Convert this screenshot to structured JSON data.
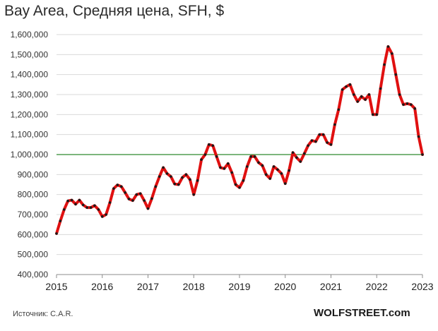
{
  "title": "Bay Area, Средняя цена, SFH, $",
  "source": "Источник: C.A.R.",
  "brand": "WOLFSTREET.com",
  "chart_data": {
    "type": "line",
    "title": "Bay Area, Средняя цена, SFH, $",
    "xlabel": "",
    "ylabel": "",
    "xlim": [
      2015,
      2023
    ],
    "ylim": [
      400000,
      1600000
    ],
    "grid": "horizontal",
    "y_ticks": [
      "400,000",
      "500,000",
      "600,000",
      "700,000",
      "800,000",
      "900,000",
      "1,000,000",
      "1,100,000",
      "1,200,000",
      "1,300,000",
      "1,400,000",
      "1,500,000",
      "1,600,000"
    ],
    "x_ticks": [
      "2015",
      "2016",
      "2017",
      "2018",
      "2019",
      "2020",
      "2021",
      "2022",
      "2023"
    ],
    "reference_line": {
      "value": 1000000,
      "color": "#2e8b2e"
    },
    "series": [
      {
        "color": "#e01010",
        "marker_color": "#1a1a1a",
        "x": [
          2015.0,
          2015.083,
          2015.167,
          2015.25,
          2015.333,
          2015.417,
          2015.5,
          2015.583,
          2015.667,
          2015.75,
          2015.833,
          2015.917,
          2016.0,
          2016.083,
          2016.167,
          2016.25,
          2016.333,
          2016.417,
          2016.5,
          2016.583,
          2016.667,
          2016.75,
          2016.833,
          2016.917,
          2017.0,
          2017.083,
          2017.167,
          2017.25,
          2017.333,
          2017.417,
          2017.5,
          2017.583,
          2017.667,
          2017.75,
          2017.833,
          2017.917,
          2018.0,
          2018.083,
          2018.167,
          2018.25,
          2018.333,
          2018.417,
          2018.5,
          2018.583,
          2018.667,
          2018.75,
          2018.833,
          2018.917,
          2019.0,
          2019.083,
          2019.167,
          2019.25,
          2019.333,
          2019.417,
          2019.5,
          2019.583,
          2019.667,
          2019.75,
          2019.833,
          2019.917,
          2020.0,
          2020.083,
          2020.167,
          2020.25,
          2020.333,
          2020.417,
          2020.5,
          2020.583,
          2020.667,
          2020.75,
          2020.833,
          2020.917,
          2021.0,
          2021.083,
          2021.167,
          2021.25,
          2021.333,
          2021.417,
          2021.5,
          2021.583,
          2021.667,
          2021.75,
          2021.833,
          2021.917,
          2022.0,
          2022.083,
          2022.167,
          2022.25,
          2022.333,
          2022.417,
          2022.5,
          2022.583,
          2022.667,
          2022.75,
          2022.833,
          2022.917,
          2023.0
        ],
        "y": [
          605000,
          668000,
          725000,
          768000,
          772000,
          752000,
          772000,
          748000,
          735000,
          735000,
          745000,
          725000,
          690000,
          700000,
          760000,
          830000,
          848000,
          840000,
          810000,
          778000,
          770000,
          800000,
          805000,
          770000,
          730000,
          780000,
          840000,
          890000,
          935000,
          905000,
          890000,
          853000,
          850000,
          885000,
          900000,
          875000,
          800000,
          870000,
          975000,
          1000000,
          1050000,
          1045000,
          990000,
          935000,
          930000,
          955000,
          910000,
          850000,
          835000,
          870000,
          940000,
          990000,
          990000,
          960000,
          945000,
          900000,
          880000,
          940000,
          925000,
          905000,
          855000,
          920000,
          1010000,
          985000,
          965000,
          1005000,
          1045000,
          1070000,
          1065000,
          1100000,
          1100000,
          1060000,
          1050000,
          1150000,
          1225000,
          1325000,
          1340000,
          1350000,
          1300000,
          1265000,
          1290000,
          1275000,
          1300000,
          1200000,
          1200000,
          1330000,
          1450000,
          1540000,
          1505000,
          1400000,
          1300000,
          1250000,
          1255000,
          1250000,
          1230000,
          1090000,
          1000000
        ]
      }
    ]
  }
}
